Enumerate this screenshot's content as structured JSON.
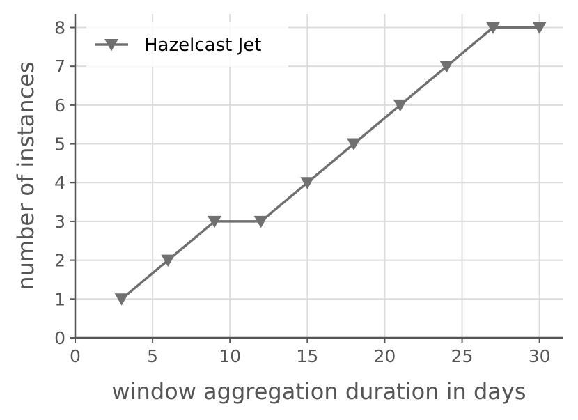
{
  "chart_data": {
    "type": "line",
    "title": "",
    "xlabel": "window aggregation duration in days",
    "ylabel": "number of instances",
    "xlim": [
      0,
      31.5
    ],
    "ylim": [
      0,
      8.35
    ],
    "xticks": [
      0,
      5,
      10,
      15,
      20,
      25,
      30
    ],
    "yticks": [
      0,
      1,
      2,
      3,
      4,
      5,
      6,
      7,
      8
    ],
    "grid": true,
    "legend_position": "top-left",
    "series": [
      {
        "name": "Hazelcast Jet",
        "marker": "triangle-down",
        "color": "#707070",
        "x": [
          3,
          6,
          9,
          12,
          15,
          18,
          21,
          24,
          27,
          30
        ],
        "y": [
          1,
          2,
          3,
          3,
          4,
          5,
          6,
          7,
          8,
          8
        ]
      }
    ]
  },
  "colors": {
    "grid": "#dcdcdc",
    "axis": "#555555",
    "series": "#707070"
  }
}
